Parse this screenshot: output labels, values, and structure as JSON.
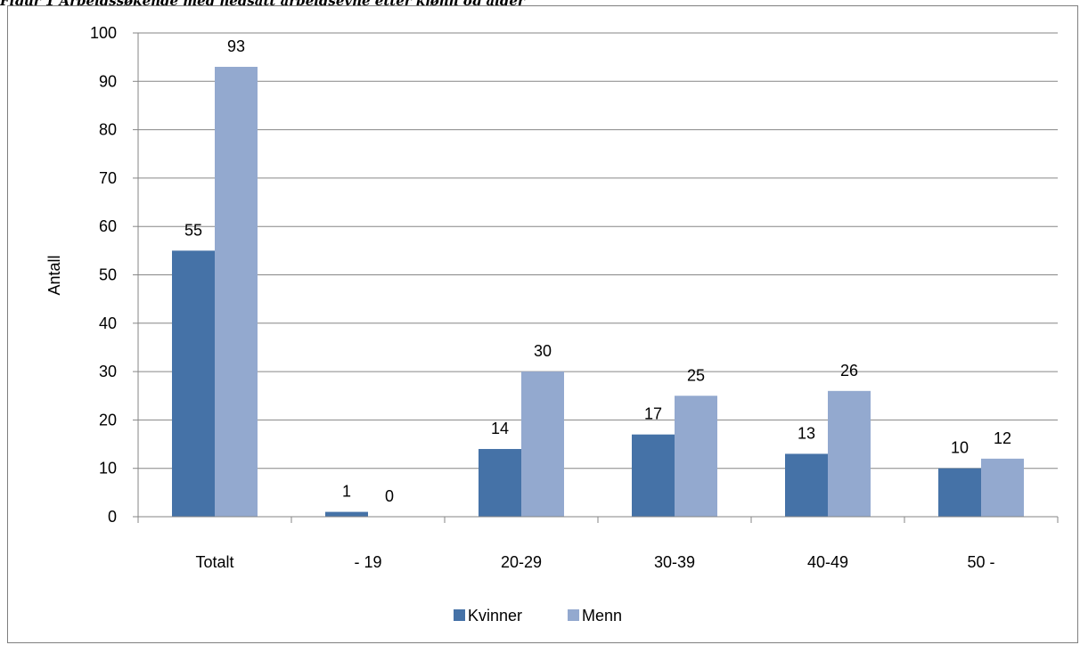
{
  "caption": "Figur 1 Arbeidssøkende med nedsatt arbeidsevne etter kjønn og alder",
  "chart_data": {
    "type": "bar",
    "title": "",
    "xlabel": "",
    "ylabel": "Antall",
    "ylim": [
      0,
      100
    ],
    "yticks": [
      "0",
      "10",
      "20",
      "30",
      "40",
      "50",
      "60",
      "70",
      "80",
      "90",
      "100"
    ],
    "grid": true,
    "legend_position": "bottom",
    "categories": [
      "Totalt",
      "- 19",
      "20-29",
      "30-39",
      "40-49",
      "50 -"
    ],
    "series": [
      {
        "name": "Kvinner",
        "color": "#4572a7",
        "values": [
          55,
          1,
          14,
          17,
          13,
          10
        ]
      },
      {
        "name": "Menn",
        "color": "#93a9cf",
        "values": [
          93,
          0,
          30,
          25,
          26,
          12
        ]
      }
    ]
  }
}
